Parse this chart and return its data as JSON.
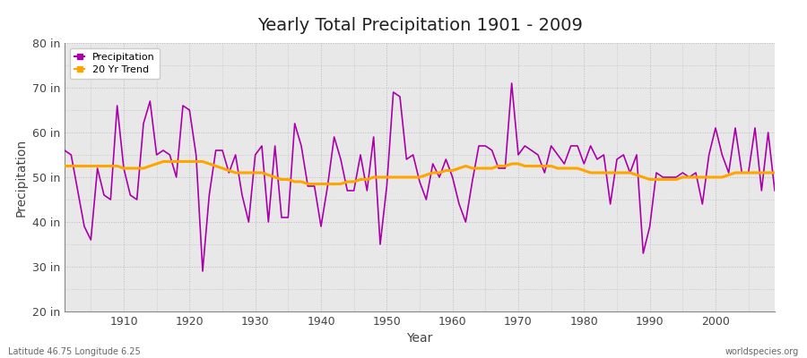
{
  "title": "Yearly Total Precipitation 1901 - 2009",
  "xlabel": "Year",
  "ylabel": "Precipitation",
  "bg_color": "#ffffff",
  "plot_bg_color": "#e8e8e8",
  "precip_color": "#aa00aa",
  "trend_color": "#ffa500",
  "ylim": [
    20,
    80
  ],
  "yticks": [
    20,
    30,
    40,
    50,
    60,
    70,
    80
  ],
  "ytick_labels": [
    "20 in",
    "30 in",
    "40 in",
    "50 in",
    "60 in",
    "70 in",
    "80 in"
  ],
  "years": [
    1901,
    1902,
    1903,
    1904,
    1905,
    1906,
    1907,
    1908,
    1909,
    1910,
    1911,
    1912,
    1913,
    1914,
    1915,
    1916,
    1917,
    1918,
    1919,
    1920,
    1921,
    1922,
    1923,
    1924,
    1925,
    1926,
    1927,
    1928,
    1929,
    1930,
    1931,
    1932,
    1933,
    1934,
    1935,
    1936,
    1937,
    1938,
    1939,
    1940,
    1941,
    1942,
    1943,
    1944,
    1945,
    1946,
    1947,
    1948,
    1949,
    1950,
    1951,
    1952,
    1953,
    1954,
    1955,
    1956,
    1957,
    1958,
    1959,
    1960,
    1961,
    1962,
    1963,
    1964,
    1965,
    1966,
    1967,
    1968,
    1969,
    1970,
    1971,
    1972,
    1973,
    1974,
    1975,
    1976,
    1977,
    1978,
    1979,
    1980,
    1981,
    1982,
    1983,
    1984,
    1985,
    1986,
    1987,
    1988,
    1989,
    1990,
    1991,
    1992,
    1993,
    1994,
    1995,
    1996,
    1997,
    1998,
    1999,
    2000,
    2001,
    2002,
    2003,
    2004,
    2005,
    2006,
    2007,
    2008,
    2009
  ],
  "precip": [
    56,
    55,
    47,
    39,
    36,
    52,
    46,
    45,
    66,
    52,
    46,
    45,
    62,
    67,
    55,
    56,
    55,
    50,
    66,
    65,
    55,
    29,
    46,
    56,
    56,
    51,
    55,
    46,
    40,
    55,
    57,
    40,
    57,
    41,
    41,
    62,
    57,
    48,
    48,
    39,
    48,
    59,
    54,
    47,
    47,
    55,
    47,
    59,
    35,
    48,
    69,
    68,
    54,
    55,
    49,
    45,
    53,
    50,
    54,
    50,
    44,
    40,
    49,
    57,
    57,
    56,
    52,
    52,
    71,
    55,
    57,
    56,
    55,
    51,
    57,
    55,
    53,
    57,
    57,
    53,
    57,
    54,
    55,
    44,
    54,
    55,
    51,
    55,
    33,
    39,
    51,
    50,
    50,
    50,
    51,
    50,
    51,
    44,
    55,
    61,
    55,
    51,
    61,
    51,
    51,
    61,
    47,
    60,
    47
  ],
  "trend": [
    52.5,
    52.5,
    52.5,
    52.5,
    52.5,
    52.5,
    52.5,
    52.5,
    52.5,
    52.0,
    52.0,
    52.0,
    52.0,
    52.5,
    53.0,
    53.5,
    53.5,
    53.5,
    53.5,
    53.5,
    53.5,
    53.5,
    53.0,
    52.5,
    52.0,
    51.5,
    51.0,
    51.0,
    51.0,
    51.0,
    51.0,
    50.5,
    50.0,
    49.5,
    49.5,
    49.0,
    49.0,
    48.5,
    48.5,
    48.5,
    48.5,
    48.5,
    48.5,
    49.0,
    49.0,
    49.5,
    49.5,
    50.0,
    50.0,
    50.0,
    50.0,
    50.0,
    50.0,
    50.0,
    50.0,
    50.5,
    51.0,
    51.0,
    51.5,
    51.5,
    52.0,
    52.5,
    52.0,
    52.0,
    52.0,
    52.0,
    52.5,
    52.5,
    53.0,
    53.0,
    52.5,
    52.5,
    52.5,
    52.5,
    52.5,
    52.0,
    52.0,
    52.0,
    52.0,
    51.5,
    51.0,
    51.0,
    51.0,
    51.0,
    51.0,
    51.0,
    51.0,
    50.5,
    50.0,
    49.5,
    49.5,
    49.5,
    49.5,
    49.5,
    50.0,
    50.0,
    50.0,
    50.0,
    50.0,
    50.0,
    50.0,
    50.5,
    51.0,
    51.0,
    51.0,
    51.0,
    51.0,
    51.0,
    51.0
  ],
  "xticks": [
    1910,
    1920,
    1930,
    1940,
    1950,
    1960,
    1970,
    1980,
    1990,
    2000
  ],
  "footer_left": "Latitude 46.75 Longitude 6.25",
  "footer_right": "worldspecies.org",
  "title_fontsize": 14,
  "axis_fontsize": 9,
  "label_fontsize": 10
}
